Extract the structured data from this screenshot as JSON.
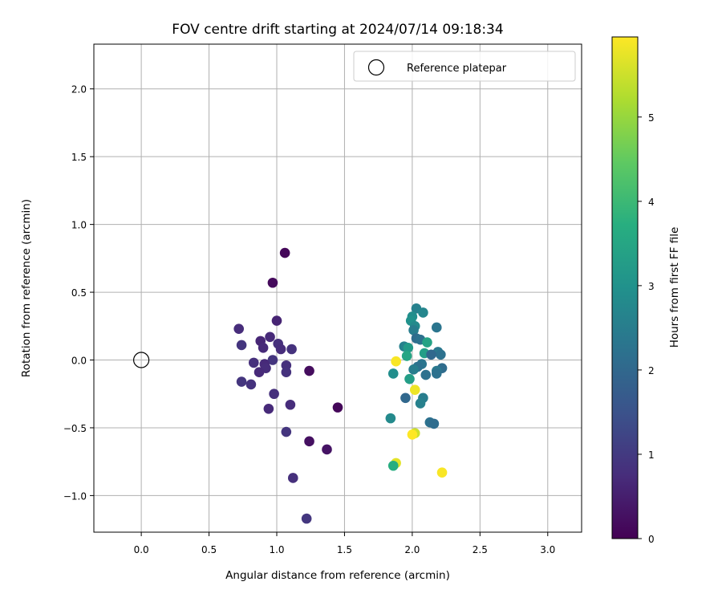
{
  "chart_data": {
    "type": "scatter",
    "title": "FOV centre drift starting at 2024/07/14 09:18:34",
    "xlabel": "Angular distance from reference (arcmin)",
    "ylabel": "Rotation from reference (arcmin)",
    "xlim": [
      -0.35,
      3.25
    ],
    "ylim": [
      -1.27,
      2.33
    ],
    "xticks": [
      "0.0",
      "0.5",
      "1.0",
      "1.5",
      "2.0",
      "2.5",
      "3.0"
    ],
    "yticks": [
      "−1.0",
      "−0.5",
      "0.0",
      "0.5",
      "1.0",
      "1.5",
      "2.0"
    ],
    "grid": true,
    "legend": {
      "position": "top-right",
      "entries": [
        "Reference platepar"
      ]
    },
    "reference_point": {
      "x": 0.0,
      "y": 0.0,
      "label": "Reference platepar"
    },
    "colorbar": {
      "label": "Hours from first FF file",
      "range": [
        0,
        5.95
      ],
      "ticks": [
        "0",
        "1",
        "2",
        "3",
        "4",
        "5"
      ],
      "colormap": "viridis"
    },
    "series": [
      {
        "points": [
          {
            "x": 1.06,
            "y": 0.79,
            "t": 0.1
          },
          {
            "x": 0.97,
            "y": 0.57,
            "t": 0.15
          },
          {
            "x": 1.24,
            "y": -0.08,
            "t": 0.2
          },
          {
            "x": 1.45,
            "y": -0.35,
            "t": 0.1
          },
          {
            "x": 1.24,
            "y": -0.6,
            "t": 0.25
          },
          {
            "x": 1.37,
            "y": -0.66,
            "t": 0.3
          },
          {
            "x": 1.0,
            "y": 0.29,
            "t": 0.6
          },
          {
            "x": 0.72,
            "y": 0.23,
            "t": 0.75
          },
          {
            "x": 0.95,
            "y": 0.17,
            "t": 0.7
          },
          {
            "x": 0.88,
            "y": 0.14,
            "t": 0.65
          },
          {
            "x": 0.74,
            "y": 0.11,
            "t": 0.9
          },
          {
            "x": 1.01,
            "y": 0.12,
            "t": 0.8
          },
          {
            "x": 0.9,
            "y": 0.09,
            "t": 0.7
          },
          {
            "x": 1.03,
            "y": 0.08,
            "t": 0.75
          },
          {
            "x": 1.11,
            "y": 0.08,
            "t": 0.85
          },
          {
            "x": 0.97,
            "y": 0.0,
            "t": 0.9
          },
          {
            "x": 0.83,
            "y": -0.02,
            "t": 0.8
          },
          {
            "x": 0.91,
            "y": -0.03,
            "t": 0.7
          },
          {
            "x": 1.07,
            "y": -0.04,
            "t": 0.8
          },
          {
            "x": 0.92,
            "y": -0.06,
            "t": 0.75
          },
          {
            "x": 0.87,
            "y": -0.09,
            "t": 0.7
          },
          {
            "x": 1.07,
            "y": -0.09,
            "t": 0.85
          },
          {
            "x": 0.74,
            "y": -0.16,
            "t": 0.9
          },
          {
            "x": 0.81,
            "y": -0.18,
            "t": 0.85
          },
          {
            "x": 0.98,
            "y": -0.25,
            "t": 0.8
          },
          {
            "x": 1.1,
            "y": -0.33,
            "t": 0.75
          },
          {
            "x": 0.94,
            "y": -0.36,
            "t": 0.7
          },
          {
            "x": 1.07,
            "y": -0.53,
            "t": 0.9
          },
          {
            "x": 1.12,
            "y": -0.87,
            "t": 0.8
          },
          {
            "x": 1.22,
            "y": -1.17,
            "t": 0.95
          },
          {
            "x": 2.03,
            "y": 0.38,
            "t": 2.6
          },
          {
            "x": 2.08,
            "y": 0.35,
            "t": 2.7
          },
          {
            "x": 2.0,
            "y": 0.32,
            "t": 2.9
          },
          {
            "x": 1.99,
            "y": 0.29,
            "t": 3.0
          },
          {
            "x": 2.02,
            "y": 0.25,
            "t": 2.8
          },
          {
            "x": 2.18,
            "y": 0.24,
            "t": 2.3
          },
          {
            "x": 2.01,
            "y": 0.22,
            "t": 2.5
          },
          {
            "x": 2.03,
            "y": 0.16,
            "t": 2.1
          },
          {
            "x": 2.06,
            "y": 0.15,
            "t": 2.2
          },
          {
            "x": 2.11,
            "y": 0.13,
            "t": 3.4
          },
          {
            "x": 1.94,
            "y": 0.1,
            "t": 2.6
          },
          {
            "x": 1.97,
            "y": 0.09,
            "t": 3.2
          },
          {
            "x": 2.19,
            "y": 0.06,
            "t": 2.4
          },
          {
            "x": 2.09,
            "y": 0.05,
            "t": 3.3
          },
          {
            "x": 2.21,
            "y": 0.04,
            "t": 2.2
          },
          {
            "x": 2.14,
            "y": 0.04,
            "t": 2.0
          },
          {
            "x": 1.96,
            "y": 0.03,
            "t": 3.5
          },
          {
            "x": 1.88,
            "y": -0.01,
            "t": 5.9
          },
          {
            "x": 2.07,
            "y": -0.03,
            "t": 2.3
          },
          {
            "x": 2.04,
            "y": -0.05,
            "t": 2.2
          },
          {
            "x": 2.22,
            "y": -0.06,
            "t": 2.1
          },
          {
            "x": 2.01,
            "y": -0.07,
            "t": 2.5
          },
          {
            "x": 2.18,
            "y": -0.08,
            "t": 2.4
          },
          {
            "x": 2.18,
            "y": -0.1,
            "t": 2.2
          },
          {
            "x": 1.86,
            "y": -0.1,
            "t": 2.9
          },
          {
            "x": 2.1,
            "y": -0.11,
            "t": 2.2
          },
          {
            "x": 1.98,
            "y": -0.14,
            "t": 3.3
          },
          {
            "x": 2.02,
            "y": -0.22,
            "t": 5.8
          },
          {
            "x": 2.08,
            "y": -0.28,
            "t": 2.5
          },
          {
            "x": 1.95,
            "y": -0.28,
            "t": 2.0
          },
          {
            "x": 2.06,
            "y": -0.32,
            "t": 2.6
          },
          {
            "x": 1.84,
            "y": -0.43,
            "t": 2.8
          },
          {
            "x": 2.13,
            "y": -0.46,
            "t": 2.2
          },
          {
            "x": 2.16,
            "y": -0.47,
            "t": 2.1
          },
          {
            "x": 2.02,
            "y": -0.54,
            "t": 5.5
          },
          {
            "x": 2.0,
            "y": -0.55,
            "t": 5.95
          },
          {
            "x": 1.88,
            "y": -0.76,
            "t": 5.7
          },
          {
            "x": 1.86,
            "y": -0.78,
            "t": 3.7
          },
          {
            "x": 2.22,
            "y": -0.83,
            "t": 5.9
          }
        ]
      }
    ]
  }
}
